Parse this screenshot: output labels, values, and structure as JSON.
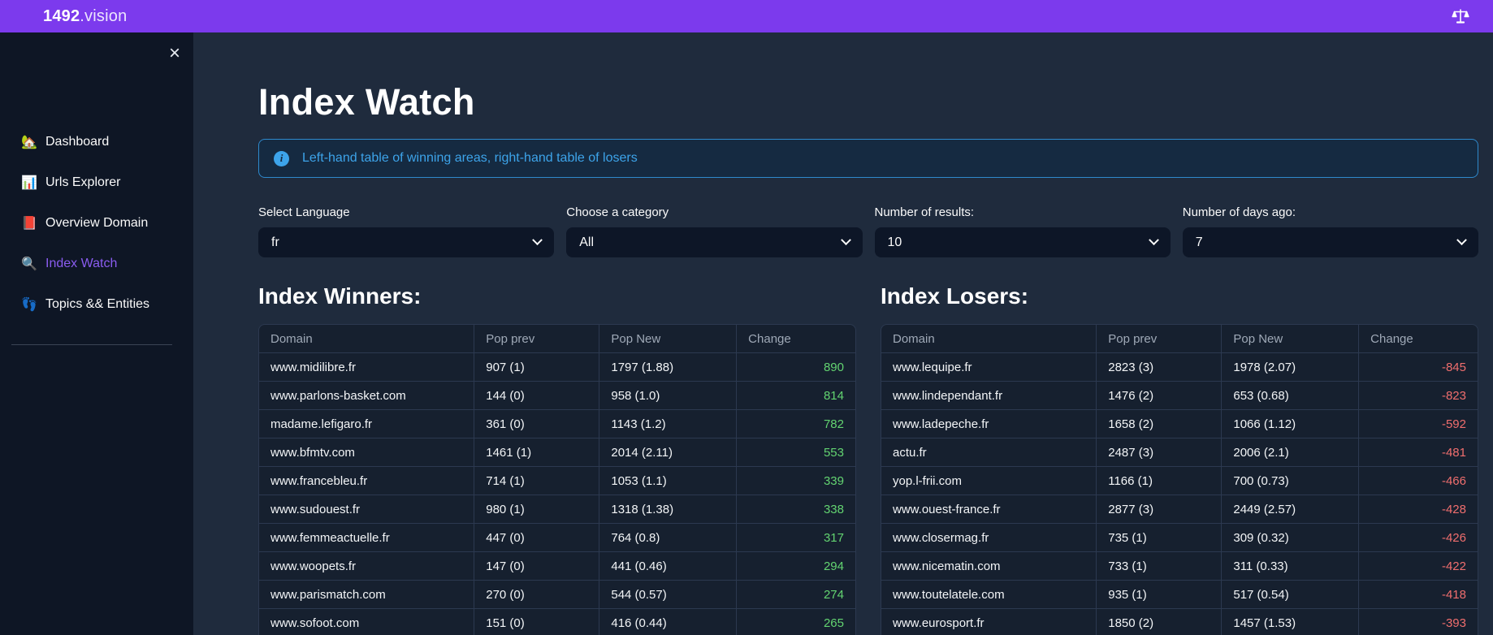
{
  "header": {
    "brand_bold": "1492",
    "brand_light": ".vision",
    "brand_accent_color": "#7c3aed"
  },
  "sidebar": {
    "close_label": "×",
    "items": [
      {
        "icon": "🏡",
        "label": "Dashboard",
        "active": false
      },
      {
        "icon": "📊",
        "label": "Urls Explorer",
        "active": false
      },
      {
        "icon": "📕",
        "label": "Overview Domain",
        "active": false
      },
      {
        "icon": "🔍",
        "label": "Index Watch",
        "active": true
      },
      {
        "icon": "👣",
        "label": "Topics && Entities",
        "active": false
      }
    ],
    "active_color": "#8a5cf0"
  },
  "main": {
    "title": "Index Watch",
    "info_banner": "Left-hand table of winning areas, right-hand table of losers",
    "filters": [
      {
        "label": "Select Language",
        "value": "fr"
      },
      {
        "label": "Choose a category",
        "value": "All"
      },
      {
        "label": "Number of results:",
        "value": "10"
      },
      {
        "label": "Number of days ago:",
        "value": "7"
      }
    ],
    "winners": {
      "heading": "Index Winners:",
      "columns": [
        "Domain",
        "Pop prev",
        "Pop New",
        "Change"
      ],
      "change_color": "#63d471",
      "rows": [
        [
          "www.midilibre.fr",
          "907 (1)",
          "1797 (1.88)",
          "890"
        ],
        [
          "www.parlons-basket.com",
          "144 (0)",
          "958 (1.0)",
          "814"
        ],
        [
          "madame.lefigaro.fr",
          "361 (0)",
          "1143 (1.2)",
          "782"
        ],
        [
          "www.bfmtv.com",
          "1461 (1)",
          "2014 (2.11)",
          "553"
        ],
        [
          "www.francebleu.fr",
          "714 (1)",
          "1053 (1.1)",
          "339"
        ],
        [
          "www.sudouest.fr",
          "980 (1)",
          "1318 (1.38)",
          "338"
        ],
        [
          "www.femmeactuelle.fr",
          "447 (0)",
          "764 (0.8)",
          "317"
        ],
        [
          "www.woopets.fr",
          "147 (0)",
          "441 (0.46)",
          "294"
        ],
        [
          "www.parismatch.com",
          "270 (0)",
          "544 (0.57)",
          "274"
        ],
        [
          "www.sofoot.com",
          "151 (0)",
          "416 (0.44)",
          "265"
        ]
      ]
    },
    "losers": {
      "heading": "Index Losers:",
      "columns": [
        "Domain",
        "Pop prev",
        "Pop New",
        "Change"
      ],
      "change_color": "#f06e6e",
      "rows": [
        [
          "www.lequipe.fr",
          "2823 (3)",
          "1978 (2.07)",
          "-845"
        ],
        [
          "www.lindependant.fr",
          "1476 (2)",
          "653 (0.68)",
          "-823"
        ],
        [
          "www.ladepeche.fr",
          "1658 (2)",
          "1066 (1.12)",
          "-592"
        ],
        [
          "actu.fr",
          "2487 (3)",
          "2006 (2.1)",
          "-481"
        ],
        [
          "yop.l-frii.com",
          "1166 (1)",
          "700 (0.73)",
          "-466"
        ],
        [
          "www.ouest-france.fr",
          "2877 (3)",
          "2449 (2.57)",
          "-428"
        ],
        [
          "www.closermag.fr",
          "735 (1)",
          "309 (0.32)",
          "-426"
        ],
        [
          "www.nicematin.com",
          "733 (1)",
          "311 (0.33)",
          "-422"
        ],
        [
          "www.toutelatele.com",
          "935 (1)",
          "517 (0.54)",
          "-418"
        ],
        [
          "www.eurosport.fr",
          "1850 (2)",
          "1457 (1.53)",
          "-393"
        ]
      ]
    }
  }
}
